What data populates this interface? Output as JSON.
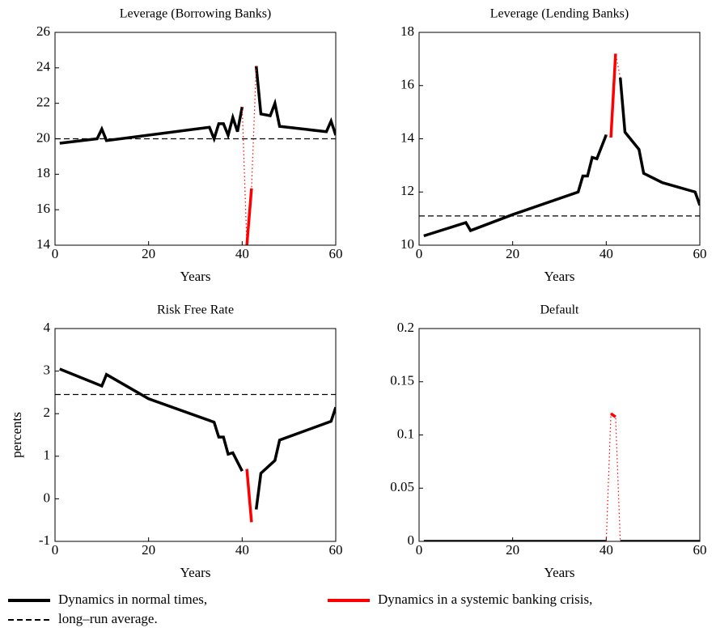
{
  "chart_data": [
    {
      "type": "line",
      "title": "Leverage (Borrowing Banks)",
      "x_label": "Years",
      "xlim": [
        0,
        60
      ],
      "xticks": [
        0,
        20,
        40,
        60
      ],
      "ylim": [
        14,
        26
      ],
      "yticks": [
        14,
        16,
        18,
        20,
        22,
        24,
        26
      ],
      "series": [
        {
          "color": "#000000",
          "style": "solid",
          "x": [
            1,
            9,
            10,
            11,
            33,
            34,
            35,
            36,
            37,
            38,
            39,
            40,
            41,
            42,
            43,
            44,
            46,
            47,
            48,
            58,
            59,
            60
          ],
          "values": [
            19.75,
            20,
            20.55,
            19.9,
            20.65,
            20,
            20.85,
            20.85,
            20.2,
            21.2,
            20.4,
            21.8,
            null,
            null,
            24.1,
            21.4,
            21.3,
            22,
            20.7,
            20.4,
            21,
            20.2
          ]
        },
        {
          "color": "#ff0000",
          "style": "solid",
          "x": [
            41,
            42
          ],
          "values": [
            14,
            17.2
          ]
        },
        {
          "color": "#ff0000",
          "style": "dotted",
          "x": [
            40,
            41,
            42,
            43
          ],
          "values": [
            21.8,
            14,
            17.2,
            24.1
          ]
        },
        {
          "color": "#000000",
          "style": "dashed",
          "x": [
            0,
            60
          ],
          "values": [
            20,
            20
          ]
        }
      ]
    },
    {
      "type": "line",
      "title": "Leverage (Lending Banks)",
      "x_label": "Years",
      "xlim": [
        0,
        60
      ],
      "xticks": [
        0,
        20,
        40,
        60
      ],
      "ylim": [
        10,
        18
      ],
      "yticks": [
        10,
        12,
        14,
        16,
        18
      ],
      "series": [
        {
          "color": "#000000",
          "style": "solid",
          "x": [
            1,
            10,
            11,
            20,
            34,
            35,
            36,
            37,
            38,
            40,
            41,
            42,
            43,
            44,
            47,
            48,
            52,
            59,
            60
          ],
          "values": [
            10.35,
            10.85,
            10.55,
            11.15,
            12,
            12.6,
            12.6,
            13.3,
            13.25,
            14.15,
            null,
            null,
            16.3,
            14.25,
            13.6,
            12.7,
            12.35,
            12,
            11.5
          ]
        },
        {
          "color": "#ff0000",
          "style": "solid",
          "x": [
            41,
            42
          ],
          "values": [
            14.05,
            17.2
          ]
        },
        {
          "color": "#ff0000",
          "style": "dotted",
          "x": [
            40,
            41,
            42,
            43
          ],
          "values": [
            14.15,
            14.05,
            17.2,
            16.3
          ]
        },
        {
          "color": "#000000",
          "style": "dashed",
          "x": [
            0,
            60
          ],
          "values": [
            11.1,
            11.1
          ]
        }
      ]
    },
    {
      "type": "line",
      "title": "Risk Free Rate",
      "x_label": "Years",
      "y_label": "percents",
      "xlim": [
        0,
        60
      ],
      "xticks": [
        0,
        20,
        40,
        60
      ],
      "ylim": [
        -1,
        4
      ],
      "yticks": [
        -1,
        0,
        1,
        2,
        3,
        4
      ],
      "series": [
        {
          "color": "#000000",
          "style": "solid",
          "x": [
            1,
            10,
            11,
            20,
            34,
            35,
            36,
            37,
            38,
            40,
            41,
            42,
            43,
            44,
            47,
            48,
            59,
            60
          ],
          "values": [
            3.05,
            2.65,
            2.92,
            2.35,
            1.8,
            1.45,
            1.45,
            1.05,
            1.08,
            0.65,
            null,
            null,
            -0.25,
            0.6,
            0.9,
            1.38,
            1.82,
            2.15
          ]
        },
        {
          "color": "#ff0000",
          "style": "solid",
          "x": [
            41,
            42
          ],
          "values": [
            0.7,
            -0.55
          ]
        },
        {
          "color": "#000000",
          "style": "dashed",
          "x": [
            0,
            60
          ],
          "values": [
            2.45,
            2.45
          ]
        }
      ]
    },
    {
      "type": "line",
      "title": "Default",
      "x_label": "Years",
      "xlim": [
        0,
        60
      ],
      "xticks": [
        0,
        20,
        40,
        60
      ],
      "ylim": [
        0,
        0.2
      ],
      "yticks": [
        0,
        0.05,
        0.1,
        0.15,
        0.2
      ],
      "series": [
        {
          "color": "#000000",
          "style": "solid",
          "x": [
            1,
            40,
            41,
            42,
            43,
            60
          ],
          "values": [
            0,
            0,
            null,
            null,
            0,
            0
          ]
        },
        {
          "color": "#ff0000",
          "style": "solid",
          "x": [
            41,
            42
          ],
          "values": [
            0.12,
            0.117
          ]
        },
        {
          "color": "#ff0000",
          "style": "dotted",
          "x": [
            40,
            41,
            42,
            43
          ],
          "values": [
            0,
            0.12,
            0.117,
            0
          ]
        }
      ]
    }
  ],
  "legend": [
    {
      "label": "Dynamics in normal times,",
      "color": "#000000",
      "style": "solid"
    },
    {
      "label": "Dynamics in a systemic banking crisis,",
      "color": "#ff0000",
      "style": "solid"
    },
    {
      "label": "long–run average.",
      "color": "#000000",
      "style": "dashed"
    }
  ]
}
